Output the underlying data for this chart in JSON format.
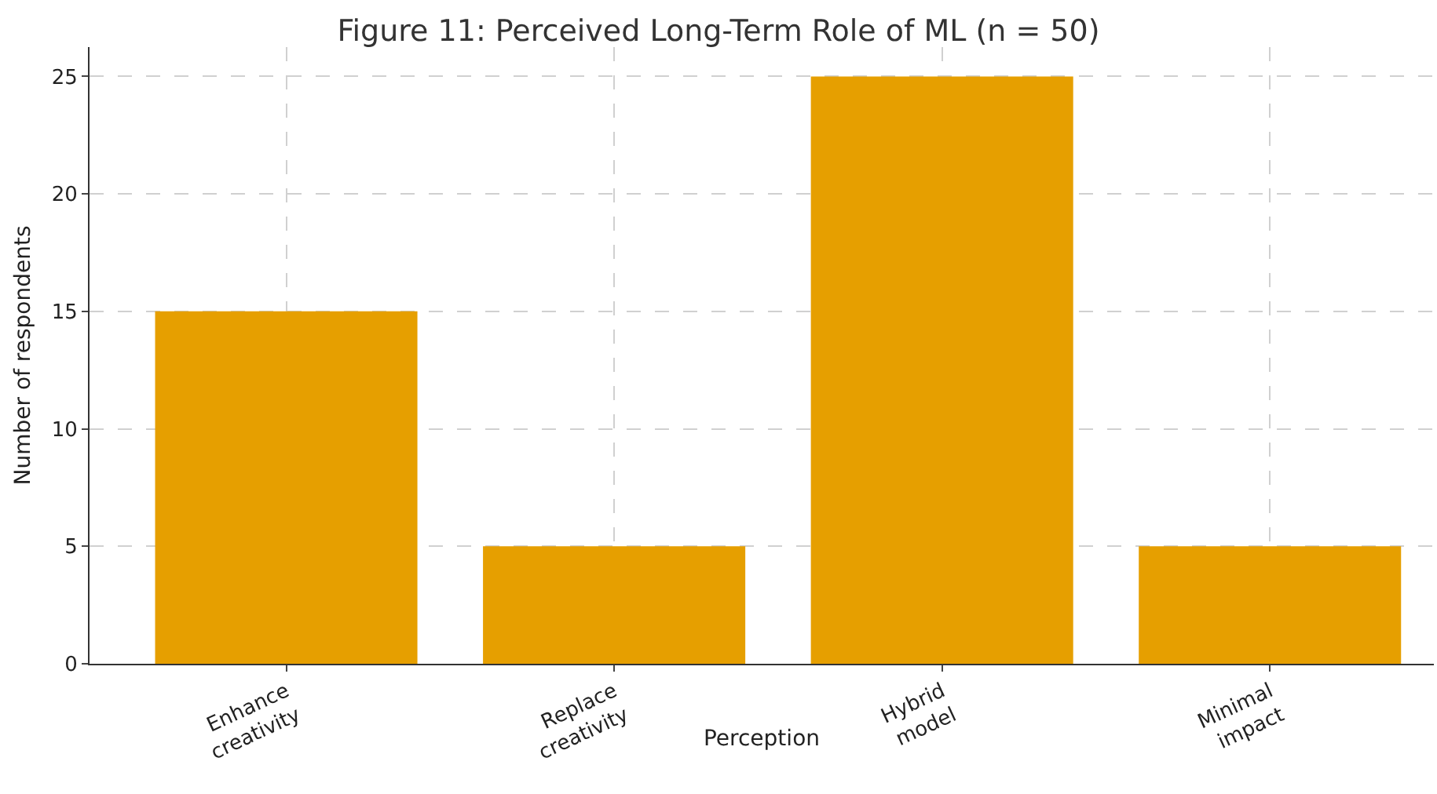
{
  "chart_data": {
    "type": "bar",
    "title": "Figure 11: Perceived Long-Term Role of ML (n = 50)",
    "xlabel": "Perception",
    "ylabel": "Number of respondents",
    "categories": [
      "Enhance\ncreativity",
      "Replace\ncreativity",
      "Hybrid\nmodel",
      "Minimal\nimpact"
    ],
    "values": [
      15,
      5,
      25,
      5
    ],
    "color": "#e69f00",
    "ylim": [
      0,
      26.25
    ],
    "yticks": [
      0,
      5,
      10,
      15,
      20,
      25
    ],
    "grid": true
  }
}
